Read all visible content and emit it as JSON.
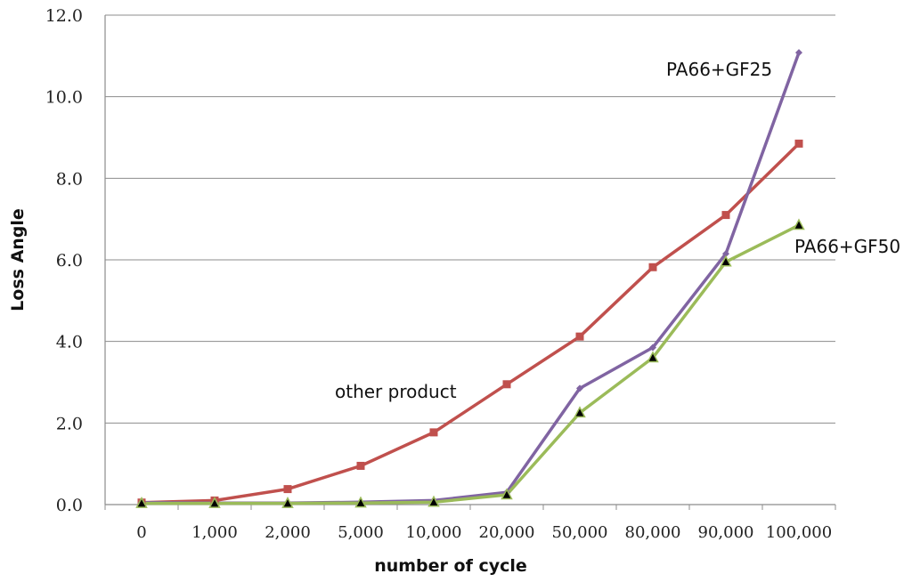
{
  "chart_data": {
    "type": "line",
    "categories": [
      "0",
      "1,000",
      "2,000",
      "5,000",
      "10,000",
      "20,000",
      "50,000",
      "80,000",
      "90,000",
      "100,000"
    ],
    "xlabel": "number of cycle",
    "ylabel": "Loss Angle",
    "ylim": [
      0,
      12
    ],
    "yticks": [
      "0.0",
      "2.0",
      "4.0",
      "6.0",
      "8.0",
      "10.0",
      "12.0"
    ],
    "grid": "horizontal",
    "series": [
      {
        "key": "other",
        "color": "#c0504d",
        "marker": "square",
        "values": [
          0.05,
          0.1,
          0.38,
          0.95,
          1.77,
          2.95,
          4.12,
          5.82,
          7.1,
          8.85
        ]
      },
      {
        "key": "gf25",
        "color": "#8064a2",
        "marker": "diamond",
        "values": [
          0.05,
          0.04,
          0.04,
          0.06,
          0.1,
          0.3,
          2.85,
          3.85,
          6.15,
          11.08
        ]
      },
      {
        "key": "gf50",
        "color": "#9bbb59",
        "marker": "triangle",
        "values": [
          0.03,
          0.03,
          0.03,
          0.04,
          0.06,
          0.24,
          2.25,
          3.6,
          5.95,
          6.85
        ]
      }
    ],
    "annotations": {
      "other": "other product",
      "gf25": "PA66+GF25",
      "gf50": "PA66+GF50"
    }
  }
}
